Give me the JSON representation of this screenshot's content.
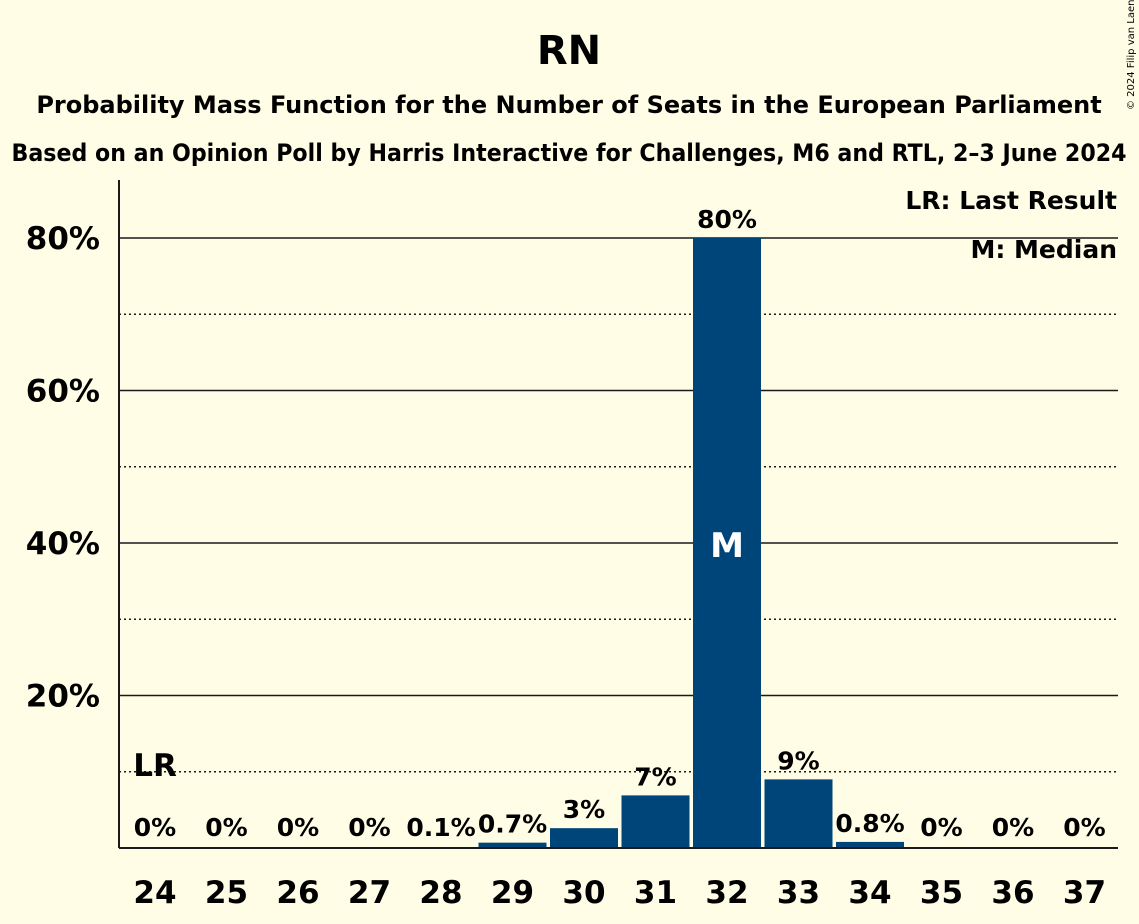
{
  "chart_data": {
    "type": "bar",
    "title": "RN",
    "subtitle": "Probability Mass Function for the Number of Seats in the European Parliament",
    "subtitle2": "Based on an Opinion Poll by Harris Interactive for Challenges, M6 and RTL, 2–3 June 2024",
    "categories": [
      "24",
      "25",
      "26",
      "27",
      "28",
      "29",
      "30",
      "31",
      "32",
      "33",
      "34",
      "35",
      "36",
      "37"
    ],
    "values": [
      0,
      0,
      0,
      0,
      0.1,
      0.7,
      2.6,
      6.9,
      80,
      9,
      0.8,
      0,
      0,
      0
    ],
    "value_labels": [
      "0%",
      "0%",
      "0%",
      "0%",
      "0.1%",
      "0.7%",
      "3%",
      "7%",
      "80%",
      "9%",
      "0.8%",
      "0%",
      "0%",
      "0%"
    ],
    "ylim": [
      0,
      87
    ],
    "y_ticks": [
      {
        "value": 20,
        "label": "20%"
      },
      {
        "value": 40,
        "label": "40%"
      },
      {
        "value": 60,
        "label": "60%"
      },
      {
        "value": 80,
        "label": "80%"
      }
    ],
    "minor_gridlines": [
      10,
      30,
      50,
      70
    ],
    "grid": true,
    "last_result": {
      "category": "24",
      "label": "LR"
    },
    "median": {
      "category": "32",
      "label": "M"
    },
    "legend": {
      "placement": "top-right",
      "entries": [
        "LR: Last Result",
        "M: Median"
      ]
    },
    "bar_color": "#00457a",
    "copyright": "© 2024 Filip van Laenen"
  }
}
